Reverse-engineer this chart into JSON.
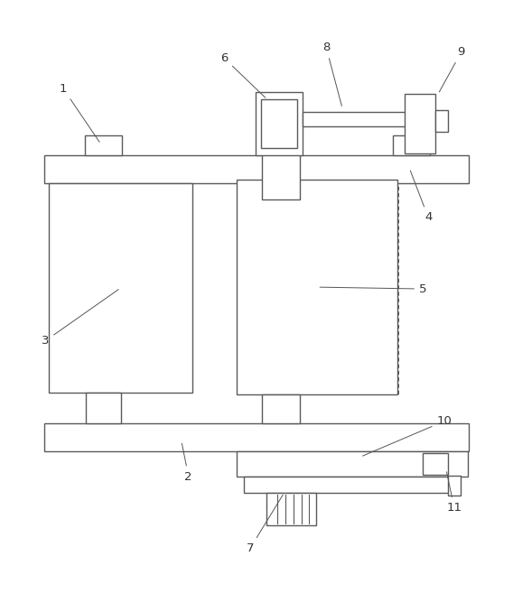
{
  "fig_width": 5.68,
  "fig_height": 6.57,
  "dpi": 100,
  "bg_color": "#ffffff",
  "line_color": "#5a5a5a",
  "lw": 1.0,
  "lw_dash": 0.75
}
